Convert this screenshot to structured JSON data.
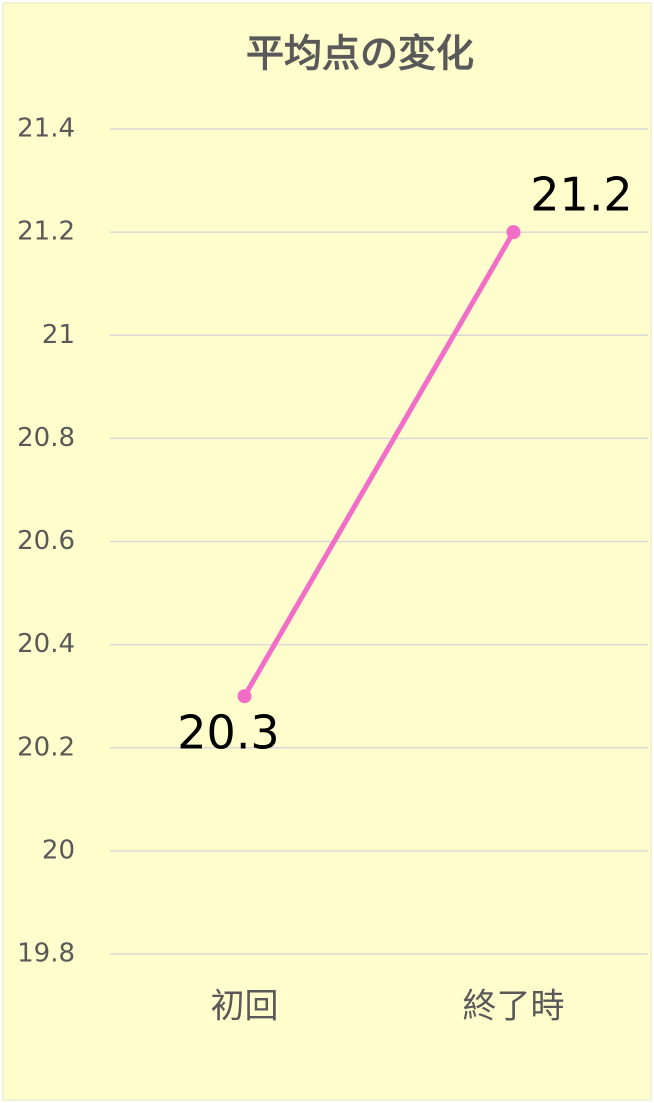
{
  "chart_data": {
    "type": "line",
    "title": "平均点の変化",
    "categories": [
      "初回",
      "終了時"
    ],
    "series": [
      {
        "name": "平均点",
        "color": "#f26dc8",
        "values": [
          20.3,
          21.2
        ]
      }
    ],
    "ylim": [
      19.8,
      21.4
    ],
    "yticks": [
      19.8,
      20,
      20.2,
      20.4,
      20.6,
      20.8,
      21,
      21.2,
      21.4
    ],
    "grid": true
  }
}
